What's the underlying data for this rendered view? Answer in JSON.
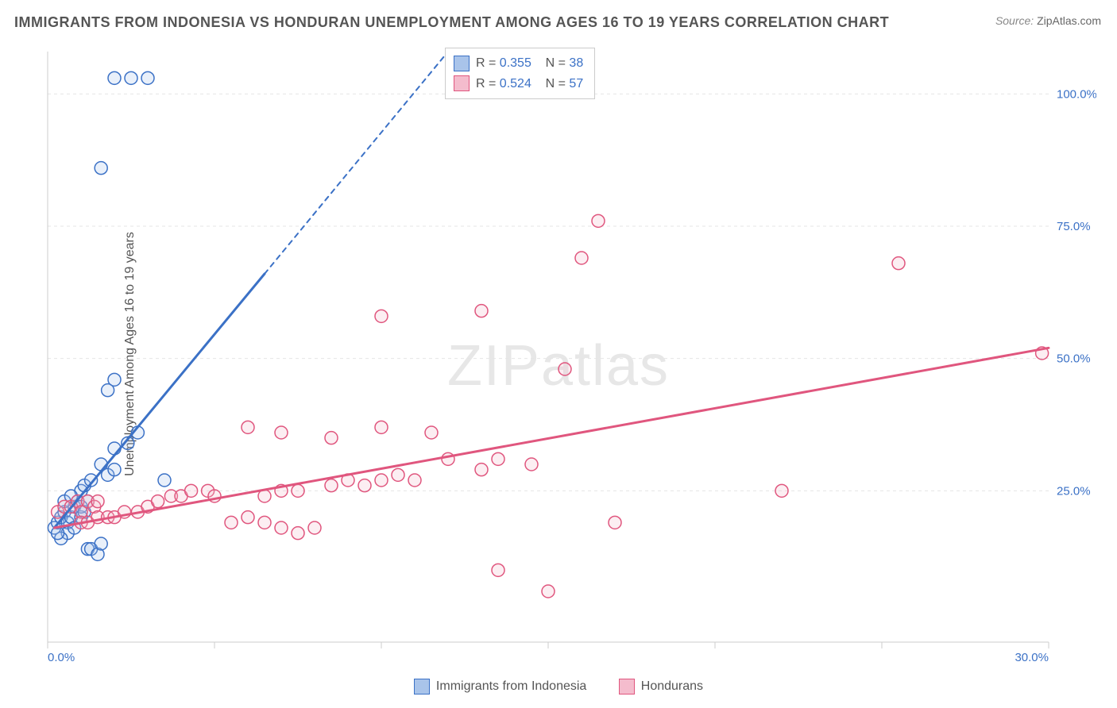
{
  "title": "IMMIGRANTS FROM INDONESIA VS HONDURAN UNEMPLOYMENT AMONG AGES 16 TO 19 YEARS CORRELATION CHART",
  "source_label": "Source: ",
  "source_value": "ZipAtlas.com",
  "y_axis_label": "Unemployment Among Ages 16 to 19 years",
  "watermark": {
    "a": "ZIP",
    "b": "atlas"
  },
  "chart": {
    "type": "scatter",
    "background_color": "#ffffff",
    "grid_color": "#e5e5e5",
    "axis_color": "#cccccc",
    "xlim": [
      0,
      30
    ],
    "ylim": [
      0,
      108
    ],
    "x_ticks": [
      0,
      5,
      10,
      15,
      20,
      25,
      30
    ],
    "x_tick_labels": [
      "0.0%",
      "",
      "",
      "",
      "",
      "",
      "30.0%"
    ],
    "y_ticks": [
      25,
      50,
      75,
      100
    ],
    "y_tick_labels": [
      "25.0%",
      "50.0%",
      "75.0%",
      "100.0%"
    ],
    "marker_radius": 8,
    "marker_stroke_width": 1.5,
    "marker_fill_opacity": 0.25,
    "trend_line_width": 3,
    "trend_dash_width": 2,
    "series": [
      {
        "name": "Immigrants from Indonesia",
        "color_stroke": "#3b71c6",
        "color_fill": "#a9c4ea",
        "R": "0.355",
        "N": "38",
        "trend": {
          "x1": 0.2,
          "y1": 18,
          "x2_solid": 6.5,
          "y2_solid": 66,
          "x2_dash": 12,
          "y2_dash": 108
        },
        "points": [
          [
            0.2,
            18
          ],
          [
            0.3,
            19
          ],
          [
            0.4,
            20
          ],
          [
            0.5,
            21
          ],
          [
            0.6,
            19
          ],
          [
            0.7,
            20
          ],
          [
            0.8,
            22
          ],
          [
            0.9,
            23
          ],
          [
            1.0,
            20
          ],
          [
            1.0,
            22
          ],
          [
            1.1,
            21
          ],
          [
            1.2,
            23
          ],
          [
            1.2,
            14
          ],
          [
            1.3,
            14
          ],
          [
            1.5,
            13
          ],
          [
            1.6,
            15
          ],
          [
            1.0,
            25
          ],
          [
            1.1,
            26
          ],
          [
            1.3,
            27
          ],
          [
            1.6,
            30
          ],
          [
            1.8,
            28
          ],
          [
            2.0,
            29
          ],
          [
            3.5,
            27
          ],
          [
            2.0,
            33
          ],
          [
            2.4,
            34
          ],
          [
            2.7,
            36
          ],
          [
            1.8,
            44
          ],
          [
            2.0,
            46
          ],
          [
            2.0,
            103
          ],
          [
            2.5,
            103
          ],
          [
            3.0,
            103
          ],
          [
            1.6,
            86
          ],
          [
            0.5,
            23
          ],
          [
            0.7,
            24
          ],
          [
            0.6,
            17
          ],
          [
            0.4,
            16
          ],
          [
            0.3,
            17
          ],
          [
            0.8,
            18
          ]
        ]
      },
      {
        "name": "Hondurans",
        "color_stroke": "#e0567e",
        "color_fill": "#f4bccd",
        "R": "0.524",
        "N": "57",
        "trend": {
          "x1": 0.2,
          "y1": 18,
          "x2_solid": 30,
          "y2_solid": 52,
          "x2_dash": 30,
          "y2_dash": 52
        },
        "points": [
          [
            0.3,
            21
          ],
          [
            0.5,
            22
          ],
          [
            0.7,
            22
          ],
          [
            0.9,
            23
          ],
          [
            1.0,
            21
          ],
          [
            1.2,
            23
          ],
          [
            1.4,
            22
          ],
          [
            1.5,
            23
          ],
          [
            1.0,
            19
          ],
          [
            1.2,
            19
          ],
          [
            1.5,
            20
          ],
          [
            1.8,
            20
          ],
          [
            2.0,
            20
          ],
          [
            2.3,
            21
          ],
          [
            2.7,
            21
          ],
          [
            3.0,
            22
          ],
          [
            3.3,
            23
          ],
          [
            3.7,
            24
          ],
          [
            4.0,
            24
          ],
          [
            4.3,
            25
          ],
          [
            4.8,
            25
          ],
          [
            5.0,
            24
          ],
          [
            5.5,
            19
          ],
          [
            6.0,
            20
          ],
          [
            6.5,
            19
          ],
          [
            7.0,
            18
          ],
          [
            7.5,
            17
          ],
          [
            8.0,
            18
          ],
          [
            6.5,
            24
          ],
          [
            7.0,
            25
          ],
          [
            7.5,
            25
          ],
          [
            8.5,
            26
          ],
          [
            9.0,
            27
          ],
          [
            9.5,
            26
          ],
          [
            10.0,
            27
          ],
          [
            10.5,
            28
          ],
          [
            11.0,
            27
          ],
          [
            12.0,
            31
          ],
          [
            13.0,
            29
          ],
          [
            13.5,
            31
          ],
          [
            14.5,
            30
          ],
          [
            6.0,
            37
          ],
          [
            7.0,
            36
          ],
          [
            8.5,
            35
          ],
          [
            10.0,
            37
          ],
          [
            11.5,
            36
          ],
          [
            10.0,
            58
          ],
          [
            13.0,
            59
          ],
          [
            15.5,
            48
          ],
          [
            16.0,
            69
          ],
          [
            16.5,
            76
          ],
          [
            17.0,
            19
          ],
          [
            22.0,
            25
          ],
          [
            25.5,
            68
          ],
          [
            29.8,
            51
          ],
          [
            13.5,
            10
          ],
          [
            15.0,
            6
          ]
        ]
      }
    ]
  },
  "bottom_legend": [
    {
      "label": "Immigrants from Indonesia",
      "fill": "#a9c4ea",
      "stroke": "#3b71c6"
    },
    {
      "label": "Hondurans",
      "fill": "#f4bccd",
      "stroke": "#e0567e"
    }
  ]
}
